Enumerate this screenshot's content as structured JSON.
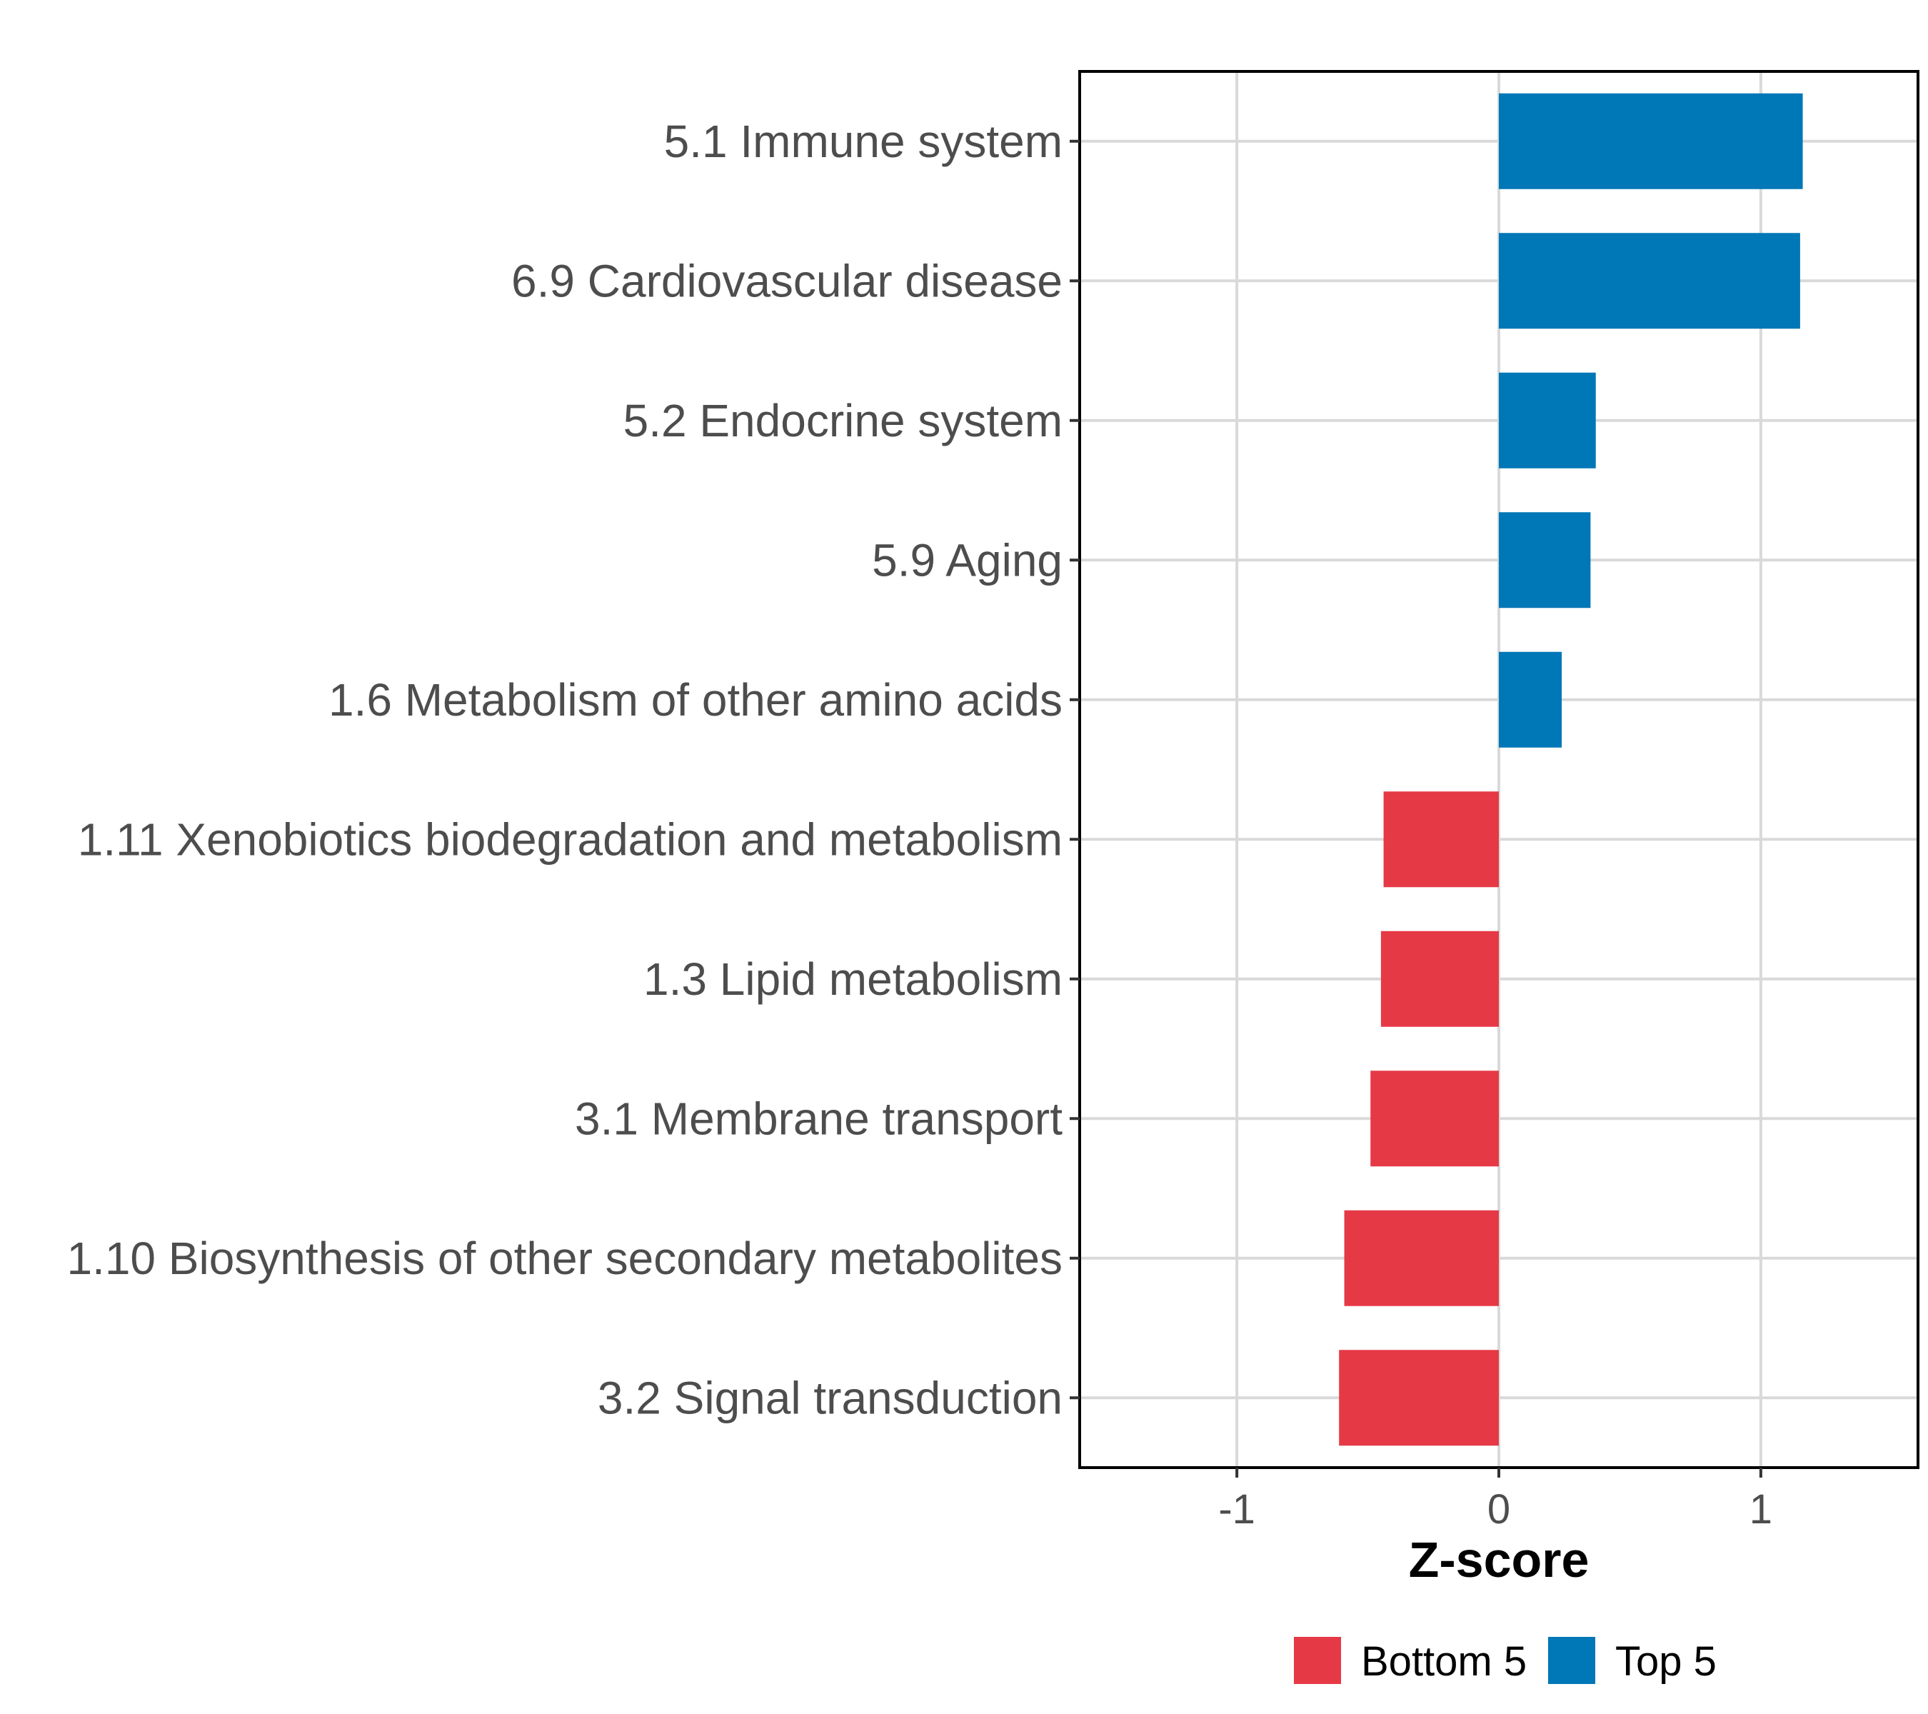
{
  "chart_data": {
    "type": "bar",
    "orientation": "horizontal",
    "title": "",
    "xlabel": "Z-score",
    "ylabel": "",
    "xlim": [
      -1.6,
      1.6
    ],
    "x_ticks": [
      -1,
      0,
      1
    ],
    "x_tick_labels": [
      "-1",
      "0",
      "1"
    ],
    "grid": true,
    "legend_position": "bottom",
    "categories": [
      "5.1 Immune system",
      "6.9 Cardiovascular disease",
      "5.2 Endocrine system",
      "5.9 Aging",
      "1.6 Metabolism of other amino acids",
      "1.11 Xenobiotics biodegradation and metabolism",
      "1.3 Lipid metabolism",
      "3.1 Membrane transport",
      "1.10 Biosynthesis of other secondary metabolites",
      "3.2 Signal transduction"
    ],
    "values": [
      1.16,
      1.15,
      0.37,
      0.35,
      0.24,
      -0.44,
      -0.45,
      -0.49,
      -0.59,
      -0.61
    ],
    "groups": [
      "Top 5",
      "Top 5",
      "Top 5",
      "Top 5",
      "Top 5",
      "Bottom 5",
      "Bottom 5",
      "Bottom 5",
      "Bottom 5",
      "Bottom 5"
    ],
    "legend": [
      {
        "name": "Bottom 5",
        "color": "#e63946"
      },
      {
        "name": "Top 5",
        "color": "#0077b6"
      }
    ]
  }
}
